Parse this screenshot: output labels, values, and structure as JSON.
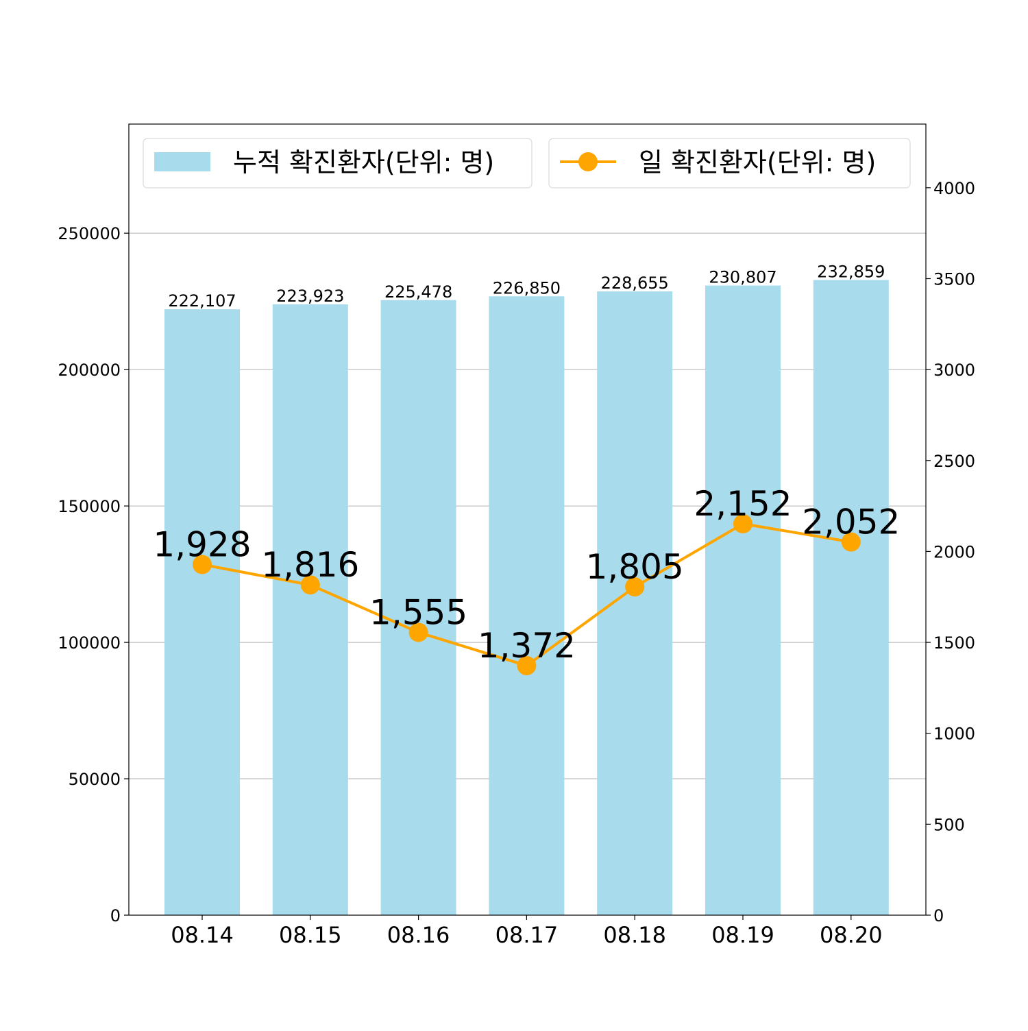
{
  "chart_data": {
    "type": "bar",
    "categories": [
      "08.14",
      "08.15",
      "08.16",
      "08.17",
      "08.18",
      "08.19",
      "08.20"
    ],
    "series": [
      {
        "name": "누적 확진환자(단위: 명)",
        "type": "bar",
        "axis": "left",
        "values": [
          222107,
          223923,
          225478,
          226850,
          228655,
          230807,
          232859
        ],
        "labels": [
          "222,107",
          "223,923",
          "225,478",
          "226,850",
          "228,655",
          "230,807",
          "232,859"
        ],
        "color": "#a8dbec"
      },
      {
        "name": "일 확진환자(단위: 명)",
        "type": "line",
        "axis": "right",
        "values": [
          1928,
          1816,
          1555,
          1372,
          1805,
          2152,
          2052
        ],
        "labels": [
          "1,928",
          "1,816",
          "1,555",
          "1,372",
          "1,805",
          "2,152",
          "2,052"
        ],
        "color": "#ffa500"
      }
    ],
    "y_left": {
      "ylim": [
        0,
        290000
      ],
      "ticks": [
        0,
        50000,
        100000,
        150000,
        200000,
        250000
      ],
      "tick_labels": [
        "0",
        "50000",
        "100000",
        "150000",
        "200000",
        "250000"
      ]
    },
    "y_right": {
      "ylim": [
        0,
        4350
      ],
      "ticks": [
        0,
        500,
        1000,
        1500,
        2000,
        2500,
        3000,
        3500,
        4000
      ],
      "tick_labels": [
        "0",
        "500",
        "1000",
        "1500",
        "2000",
        "2500",
        "3000",
        "3500",
        "4000"
      ]
    },
    "grid": true,
    "legend": "top",
    "title": "",
    "xlabel": "",
    "ylabel": ""
  }
}
